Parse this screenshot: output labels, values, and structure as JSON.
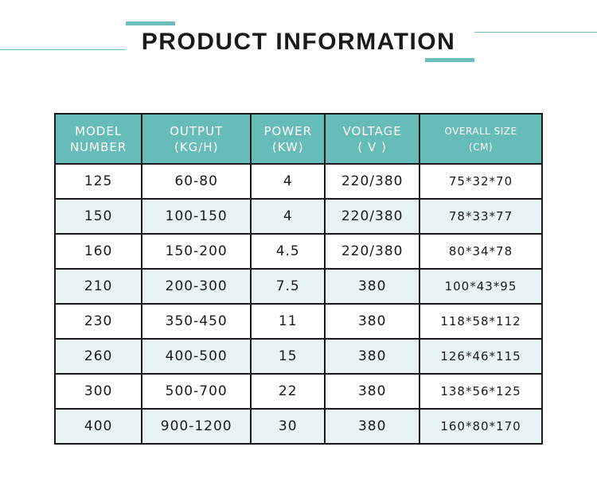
{
  "title": "PRODUCT INFORMATION",
  "accent_color": "#66bcb8",
  "headers": [
    [
      "MODEL",
      "NUMBER"
    ],
    [
      "OUTPUT",
      "(KG/H)"
    ],
    [
      "POWER",
      "(KW)"
    ],
    [
      "VOLTAGE",
      "( V )"
    ],
    [
      "OVERALL SIZE",
      "(CM)"
    ]
  ],
  "rows": [
    [
      "125",
      "60-80",
      "4",
      "220/380",
      "75*32*70"
    ],
    [
      "150",
      "100-150",
      "4",
      "220/380",
      "78*33*77"
    ],
    [
      "160",
      "150-200",
      "4.5",
      "220/380",
      "80*34*78"
    ],
    [
      "210",
      "200-300",
      "7.5",
      "380",
      "100*43*95"
    ],
    [
      "230",
      "350-450",
      "11",
      "380",
      "118*58*112"
    ],
    [
      "260",
      "400-500",
      "15",
      "380",
      "126*46*115"
    ],
    [
      "300",
      "500-700",
      "22",
      "380",
      "138*56*125"
    ],
    [
      "400",
      "900-1200",
      "30",
      "380",
      "160*80*170"
    ]
  ]
}
